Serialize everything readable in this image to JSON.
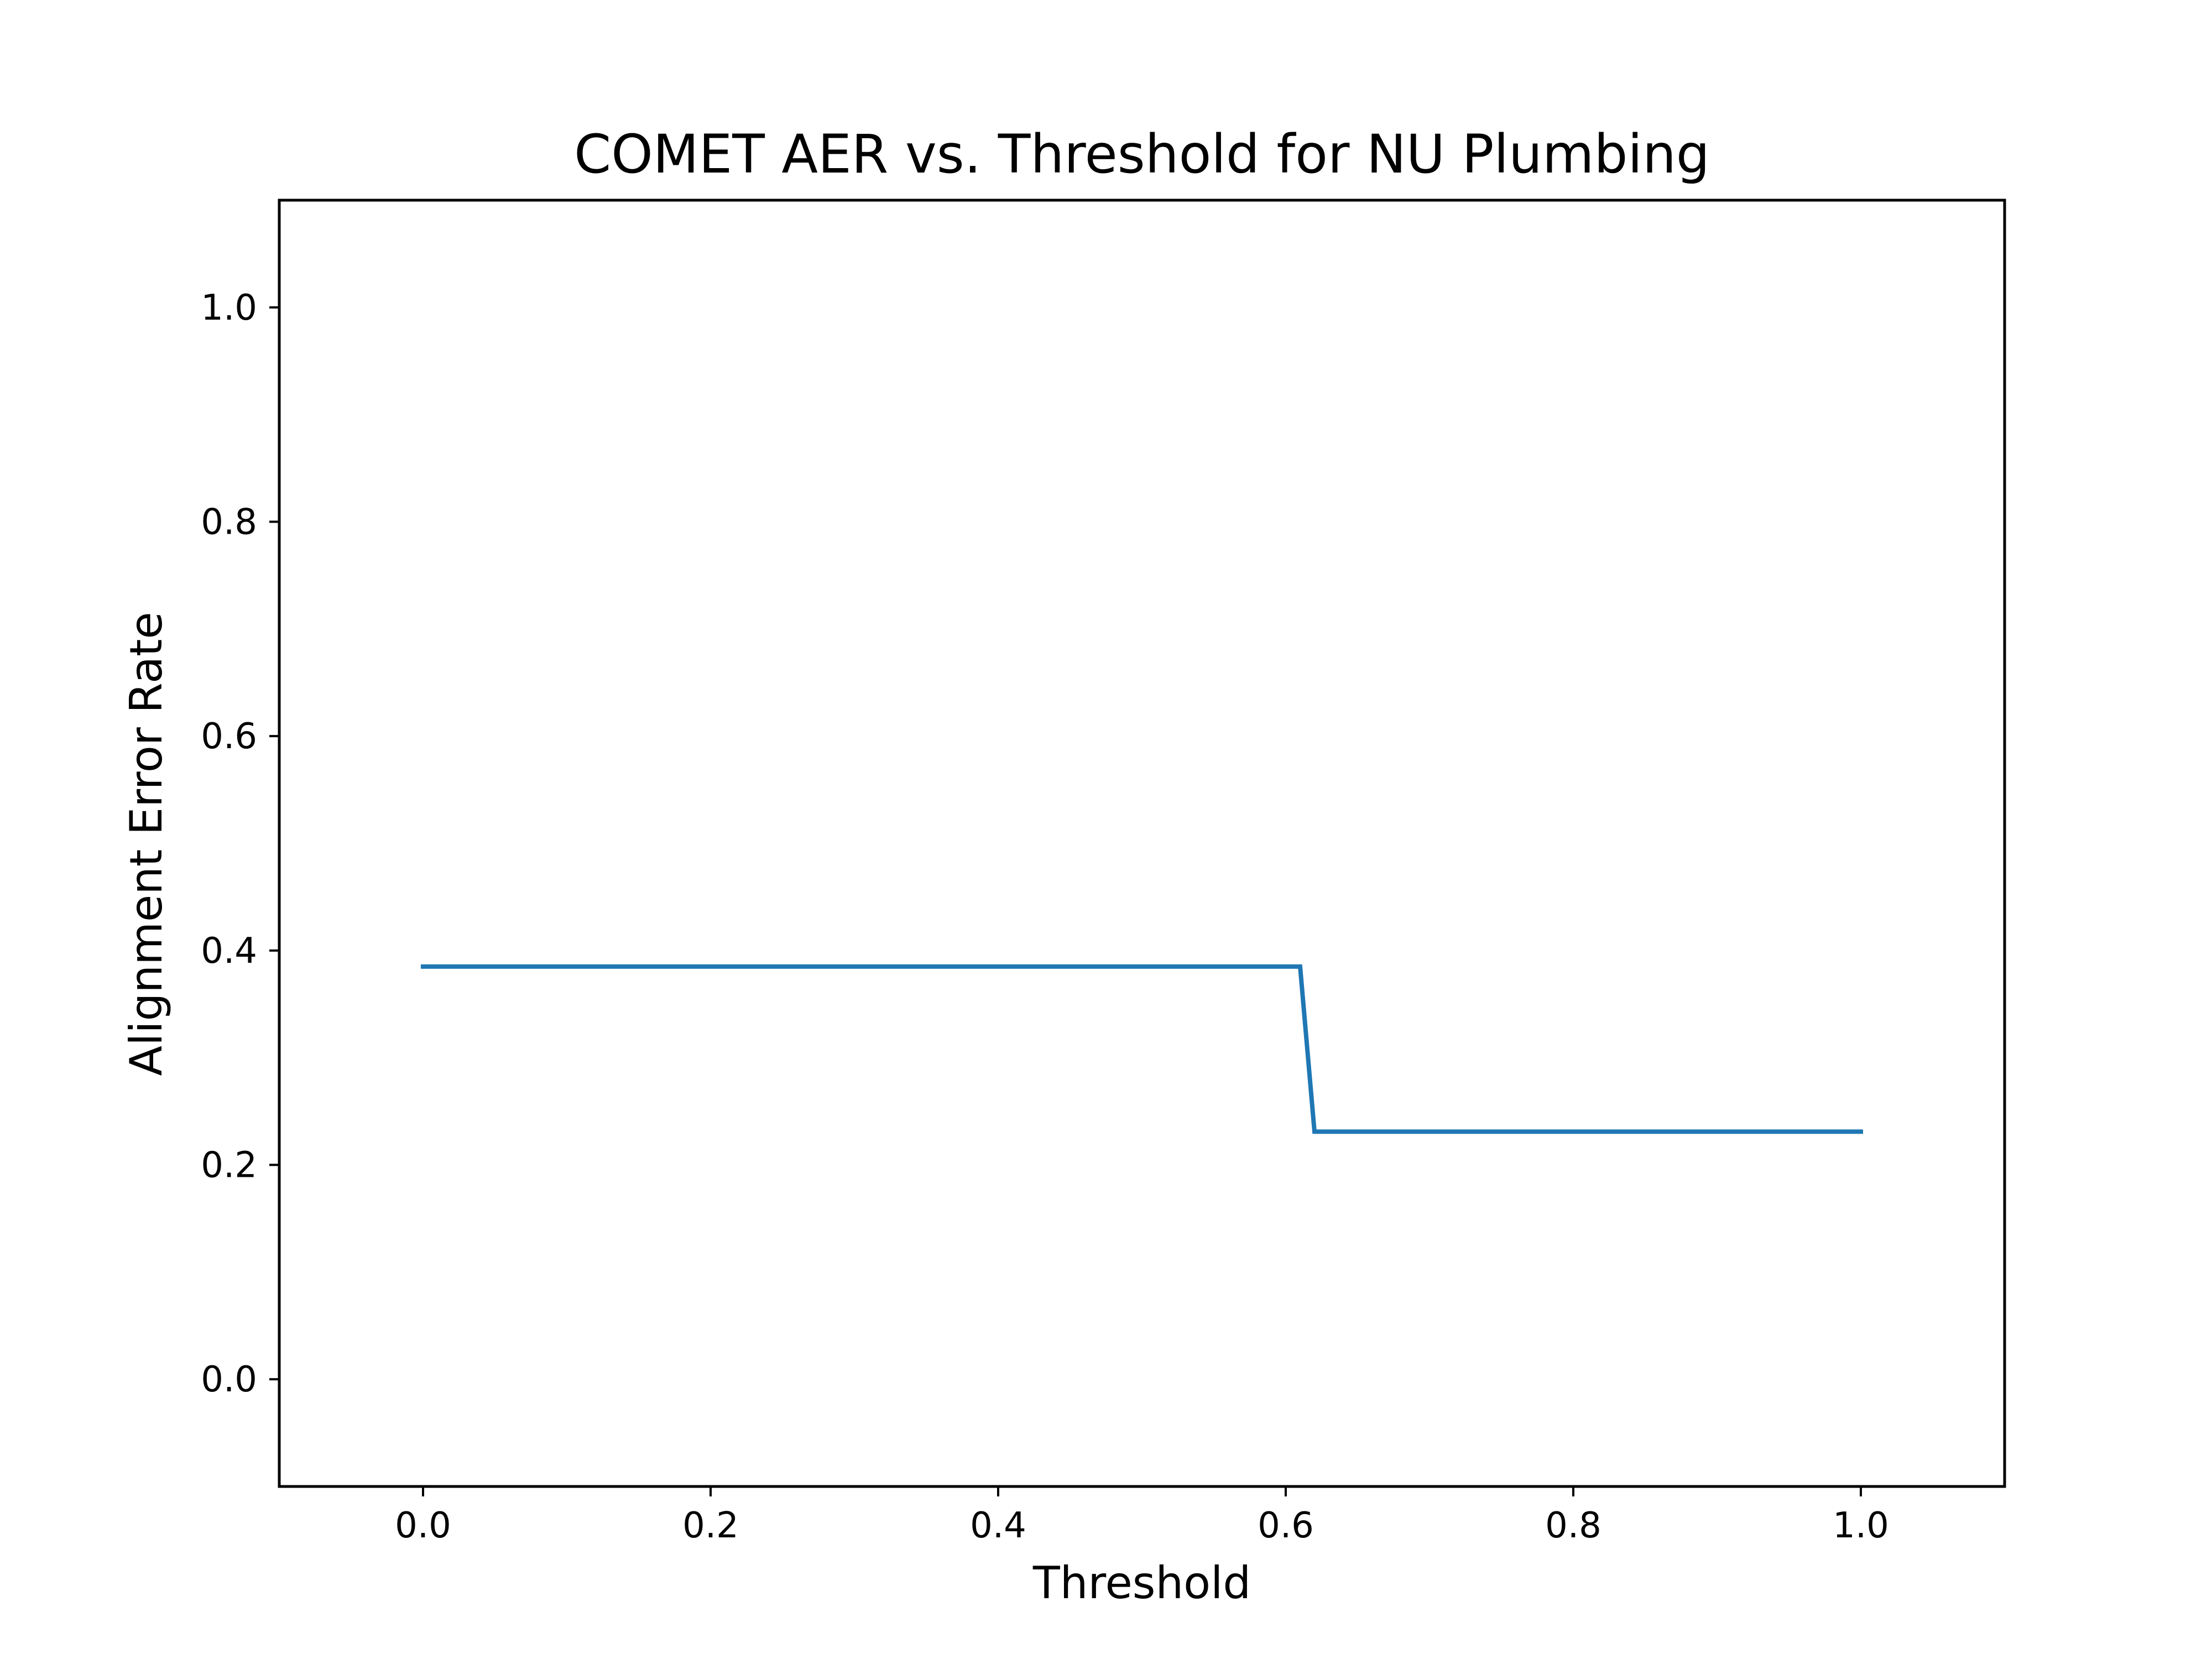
{
  "chart_data": {
    "type": "line",
    "title": "COMET AER vs. Threshold for NU Plumbing",
    "xlabel": "Threshold",
    "ylabel": "Alignment Error Rate",
    "xlim": [
      -0.1,
      1.1
    ],
    "ylim": [
      -0.1,
      1.1
    ],
    "xticks": [
      0.0,
      0.2,
      0.4,
      0.6,
      0.8,
      1.0
    ],
    "xtick_labels": [
      "0.0",
      "0.2",
      "0.4",
      "0.6",
      "0.8",
      "1.0"
    ],
    "yticks": [
      0.0,
      0.2,
      0.4,
      0.6,
      0.8,
      1.0
    ],
    "ytick_labels": [
      "0.0",
      "0.2",
      "0.4",
      "0.6",
      "0.8",
      "1.0"
    ],
    "grid": false,
    "legend": false,
    "series": [
      {
        "color": "#1f77b4",
        "x": [
          0.0,
          0.61,
          0.62,
          1.0
        ],
        "y": [
          0.385,
          0.385,
          0.231,
          0.231
        ]
      }
    ]
  }
}
